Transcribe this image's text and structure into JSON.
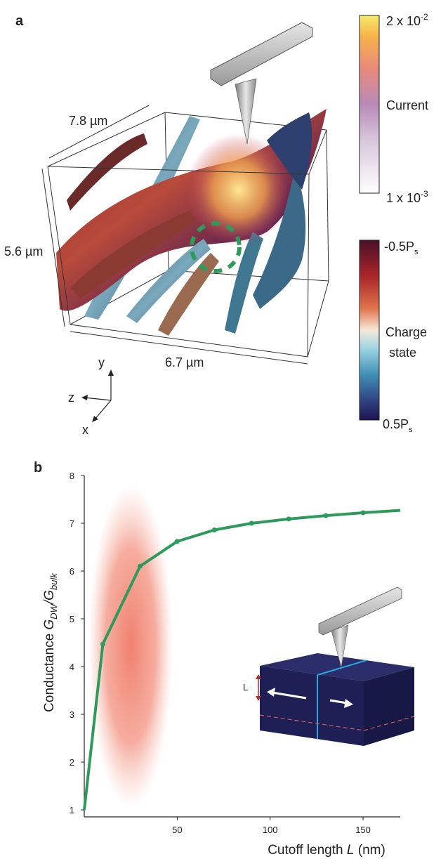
{
  "panel_a": {
    "label": "a",
    "dims": [
      "7.8 µm",
      "5.6 µm",
      "6.7 µm"
    ],
    "axes": [
      "y",
      "z",
      "x"
    ],
    "current_bar": {
      "max": {
        "base": "2 x 10",
        "exp": "-2"
      },
      "title": "Current",
      "min": {
        "base": "1 x 10",
        "exp": "-3"
      }
    },
    "charge_bar": {
      "top": {
        "base": "-0.5P",
        "sub": "s"
      },
      "title": [
        "Charge",
        "state"
      ],
      "bottom": {
        "base": "0.5P",
        "sub": "s"
      }
    }
  },
  "chart_data": {
    "type": "line",
    "label": "b",
    "x": [
      0,
      10,
      30,
      50,
      70,
      90,
      110,
      130,
      150,
      170
    ],
    "values": [
      1,
      4.47,
      6.1,
      6.62,
      6.86,
      7.0,
      7.09,
      7.16,
      7.22,
      7.27
    ],
    "color": "#2e9a5c",
    "xlim": [
      0,
      170
    ],
    "ylim": [
      1,
      8
    ],
    "xticks": [
      50,
      100,
      150
    ],
    "yticks": [
      1,
      2,
      3,
      4,
      5,
      6,
      7,
      8
    ],
    "xlabel": {
      "text": "Cutoff length ",
      "symbol": "L",
      "unit": " (nm)"
    },
    "ylabel": {
      "text": "Conductance ",
      "symbol1": "G",
      "sub1": "DW",
      "symbol2": "/G",
      "sub2": "bulk"
    },
    "inset_label": "L"
  }
}
